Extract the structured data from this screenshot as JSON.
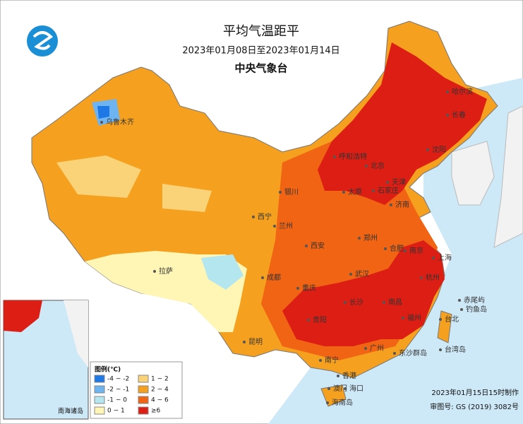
{
  "header": {
    "title": "平均气温距平",
    "subtitle": "2023年01月08日至2023年01月14日",
    "organization": "中央气象台"
  },
  "legend": {
    "title": "图例(℃)",
    "items": [
      {
        "label": "-4 ~ -2",
        "color": "#1e78e6"
      },
      {
        "label": "-2 ~ -1",
        "color": "#6eb4f0"
      },
      {
        "label": "-1 ~ 0",
        "color": "#b4e6f0"
      },
      {
        "label": "0 ~ 1",
        "color": "#fff5b4"
      },
      {
        "label": "1 ~ 2",
        "color": "#fad278"
      },
      {
        "label": "2 ~ 4",
        "color": "#f5a01e"
      },
      {
        "label": "4 ~ 6",
        "color": "#f06414"
      },
      {
        "label": "≥6",
        "color": "#dc1e14"
      }
    ]
  },
  "cities": [
    "乌鲁木齐",
    "哈尔滨",
    "长春",
    "沈阳",
    "呼和浩特",
    "北京",
    "天津",
    "石家庄",
    "太原",
    "济南",
    "银川",
    "西宁",
    "兰州",
    "郑州",
    "西安",
    "合肥",
    "南京",
    "上海",
    "杭州",
    "武汉",
    "成都",
    "重庆",
    "拉萨",
    "长沙",
    "南昌",
    "福州",
    "台北",
    "贵阳",
    "昆明",
    "南宁",
    "广州",
    "香港",
    "澳门",
    "海口",
    "台湾岛",
    "钓鱼岛",
    "赤尾屿",
    "东沙群岛",
    "海南岛"
  ],
  "inset": {
    "label": "南海诸岛"
  },
  "footer": {
    "made": "2023年01月15日15时制作",
    "approval": "审图号: GS (2019) 3082号"
  }
}
